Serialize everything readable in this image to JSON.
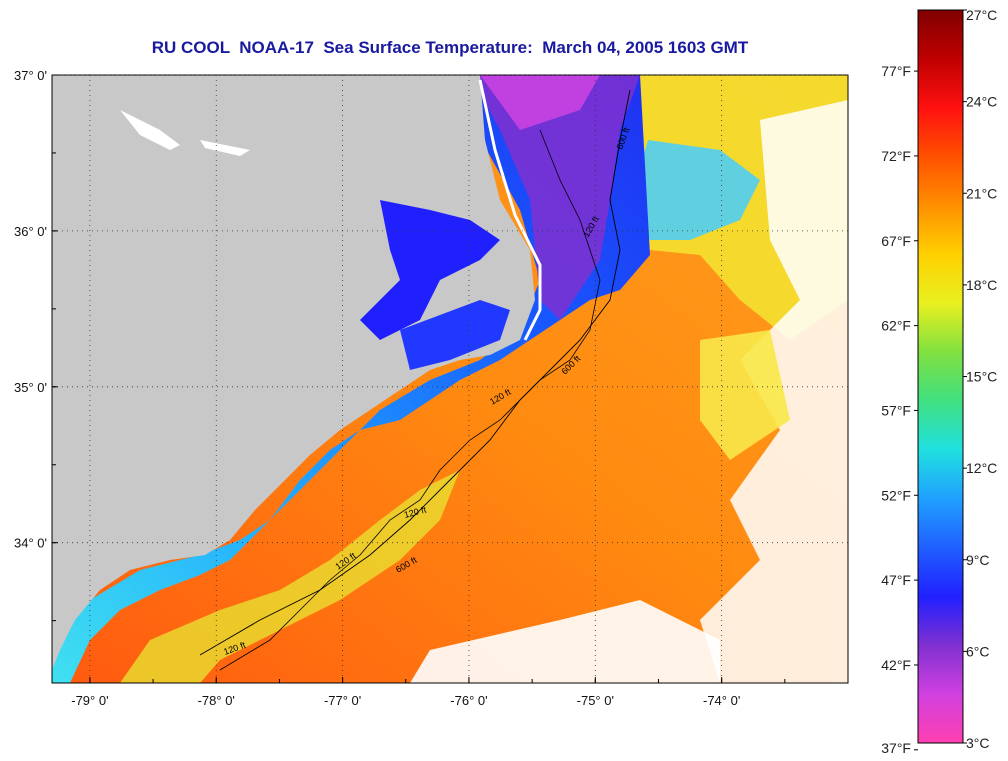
{
  "title": "RU COOL  NOAA-17  Sea Surface Temperature:  March 04, 2005 1603 GMT",
  "map": {
    "lon_range": [
      -79.3,
      -73.0
    ],
    "lat_range": [
      33.1,
      37.0
    ],
    "lon_ticks": [
      {
        "value": -79,
        "label": "-79° 0'"
      },
      {
        "value": -78,
        "label": "-78° 0'"
      },
      {
        "value": -77,
        "label": "-77° 0'"
      },
      {
        "value": -76,
        "label": "-76° 0'"
      },
      {
        "value": -75,
        "label": "-75° 0'"
      },
      {
        "value": -74,
        "label": "-74° 0'"
      }
    ],
    "lat_ticks": [
      {
        "value": 37,
        "label": "37° 0'"
      },
      {
        "value": 36,
        "label": "36° 0'"
      },
      {
        "value": 35,
        "label": "35° 0'"
      },
      {
        "value": 34,
        "label": "34° 0'"
      }
    ],
    "contour_labels": [
      "120 ft",
      "600 ft",
      "120 ft",
      "600 ft",
      "120 ft",
      "600 ft",
      "120 ft",
      "120 ft"
    ],
    "colors": {
      "land": "#c8c8c8",
      "no_data": "#ffffff",
      "gridline": "#333333"
    }
  },
  "colorbar": {
    "celsius": [
      {
        "value": 27,
        "label": "27°C"
      },
      {
        "value": 24,
        "label": "24°C"
      },
      {
        "value": 21,
        "label": "21°C"
      },
      {
        "value": 18,
        "label": "18°C"
      },
      {
        "value": 15,
        "label": "15°C"
      },
      {
        "value": 12,
        "label": "12°C"
      },
      {
        "value": 9,
        "label": "9°C"
      },
      {
        "value": 6,
        "label": "6°C"
      },
      {
        "value": 3,
        "label": "3°C"
      }
    ],
    "fahrenheit": [
      {
        "value": 77,
        "label": "77°F"
      },
      {
        "value": 72,
        "label": "72°F"
      },
      {
        "value": 67,
        "label": "67°F"
      },
      {
        "value": 62,
        "label": "62°F"
      },
      {
        "value": 57,
        "label": "57°F"
      },
      {
        "value": 52,
        "label": "52°F"
      },
      {
        "value": 47,
        "label": "47°F"
      },
      {
        "value": 42,
        "label": "42°F"
      },
      {
        "value": 37,
        "label": "37°F"
      }
    ],
    "range_c": [
      3,
      27
    ],
    "stops": [
      "#ff40b0",
      "#d040e0",
      "#8030d0",
      "#2020ff",
      "#2060ff",
      "#20a0ff",
      "#20e0e0",
      "#40e080",
      "#80e040",
      "#e8f020",
      "#ffd000",
      "#ff9000",
      "#ff5000",
      "#ff1010",
      "#c00000",
      "#800000"
    ]
  }
}
